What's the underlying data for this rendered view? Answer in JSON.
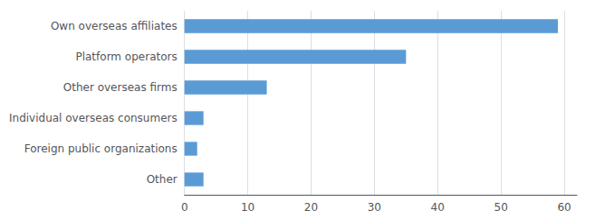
{
  "chart_data": {
    "type": "bar",
    "orientation": "horizontal",
    "categories": [
      "Other",
      "Foreign public organizations",
      "Individual overseas consumers",
      "Other overseas firms",
      "Platform operators",
      "Own overseas affiliates"
    ],
    "values": [
      3,
      2,
      3,
      13,
      35,
      59
    ],
    "color": "#5b9bd5",
    "xlim": [
      0,
      62
    ],
    "xticks": [
      0,
      10,
      20,
      30,
      40,
      50,
      60
    ],
    "grid": true
  }
}
